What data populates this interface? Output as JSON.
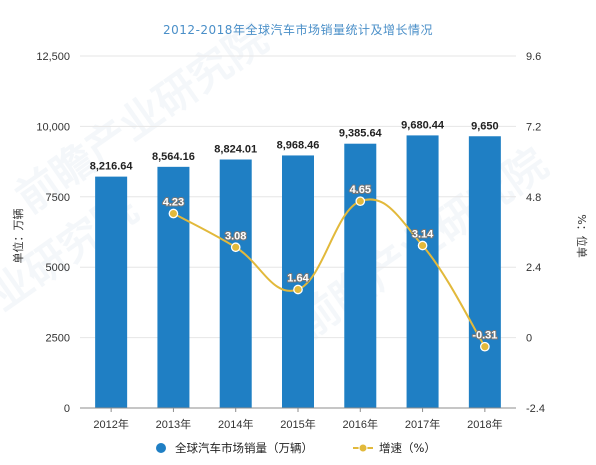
{
  "chart_data": {
    "type": "bar",
    "title": "2012-2018年全球汽车市场销量统计及增长情况",
    "ylabel": "单位：万辆",
    "y2label": "%：位单",
    "categories": [
      "2012年",
      "2013年",
      "2014年",
      "2015年",
      "2016年",
      "2017年",
      "2018年"
    ],
    "y_ticks": [
      "0",
      "2500",
      "5000",
      "7500",
      "10,000",
      "12,500"
    ],
    "y2_ticks": [
      "-2.4",
      "0",
      "2.4",
      "4.8",
      "7.2",
      "9.6"
    ],
    "ylim": [
      0,
      12500
    ],
    "y2lim": [
      -2.4,
      9.6
    ],
    "series": [
      {
        "name": "全球汽车市场销量（万辆）",
        "type": "bar",
        "axis": "left",
        "color": "#1f7fc4",
        "values": [
          8216.64,
          8564.16,
          8824.01,
          8968.46,
          9385.64,
          9680.44,
          9650
        ],
        "labels": [
          "8,216.64",
          "8,564.16",
          "8,824.01",
          "8,968.46",
          "9,385.64",
          "9,680.44",
          "9,650"
        ]
      },
      {
        "name": "增速（%）",
        "type": "line",
        "axis": "right",
        "color": "#e2b93b",
        "values": [
          null,
          4.23,
          3.08,
          1.64,
          4.65,
          3.14,
          -0.31
        ],
        "labels": [
          "",
          "4.23",
          "3.08",
          "1.64",
          "4.65",
          "3.14",
          "-0.31"
        ]
      }
    ],
    "grid": true,
    "legend_position": "bottom-center"
  },
  "watermark": "前瞻产业研究院"
}
